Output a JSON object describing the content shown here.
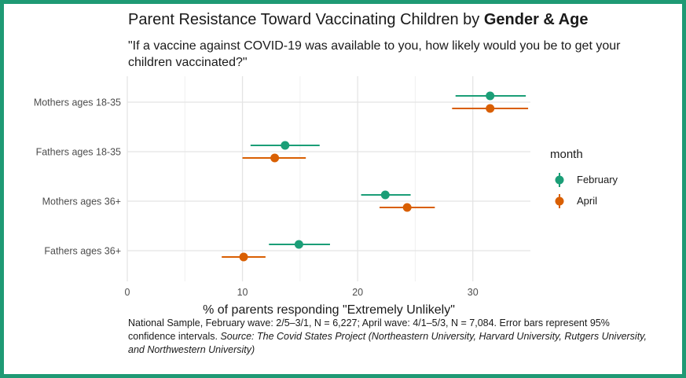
{
  "chart_data": {
    "type": "scatter",
    "title_prefix": "Parent Resistance Toward Vaccinating Children by ",
    "title_bold": "Gender & Age",
    "subtitle": "\"If a vaccine against COVID-19 was available to you, how likely would you be to get your children vaccinated?\"",
    "xlabel": "% of parents responding \"Extremely Unlikely\"",
    "ylabel": "",
    "xlim": [
      0,
      35
    ],
    "xticks": [
      "0",
      "10",
      "20",
      "30"
    ],
    "xtick_values": [
      0,
      10,
      20,
      30
    ],
    "categories": [
      "Mothers ages 18-35",
      "Fathers ages 18-35",
      "Mothers ages 36+",
      "Fathers ages 36+"
    ],
    "legend_title": "month",
    "legend_position": "right",
    "grid": true,
    "series": [
      {
        "name": "February",
        "color": "#1b9e77",
        "values": [
          31.5,
          13.7,
          22.4,
          14.9
        ],
        "lower": [
          28.5,
          10.7,
          20.3,
          12.3
        ],
        "upper": [
          34.6,
          16.7,
          24.6,
          17.6
        ]
      },
      {
        "name": "April",
        "color": "#d95f02",
        "values": [
          31.5,
          12.8,
          24.3,
          10.1
        ],
        "lower": [
          28.2,
          10.0,
          21.9,
          8.2
        ],
        "upper": [
          34.8,
          15.5,
          26.7,
          12.0
        ]
      }
    ]
  },
  "caption": {
    "plain": "National Sample, February wave: 2/5–3/1, N = 6,227; April wave: 4/1–5/3, N = 7,084. Error bars represent 95% confidence intervals. ",
    "source": "Source: The Covid States Project (Northeastern University, Harvard University, Rutgers University, and Northwestern University)"
  },
  "frame_color": "#1f9a74"
}
